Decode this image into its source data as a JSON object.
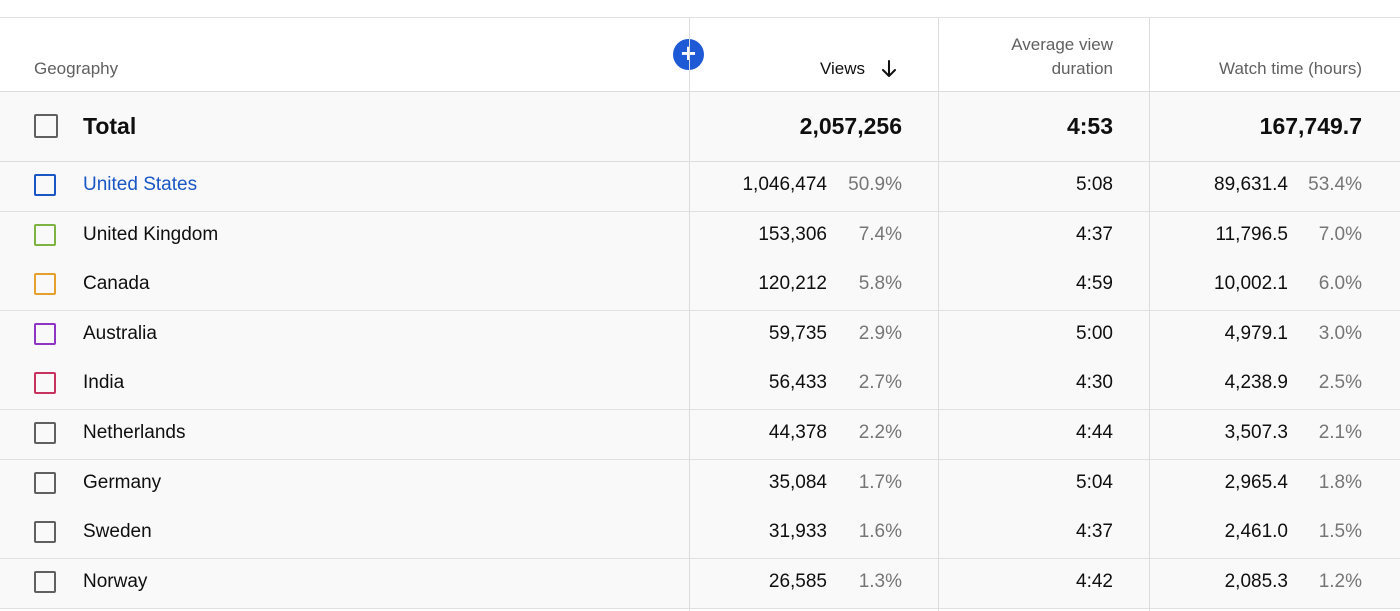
{
  "columns": {
    "geography": "Geography",
    "views": "Views",
    "avg_duration_line1": "Average view",
    "avg_duration_line2": "duration",
    "watch_time": "Watch time (hours)"
  },
  "icons": {
    "add_column": "plus-circle-icon",
    "sort": "arrow-down-icon"
  },
  "add_symbol": "+",
  "total": {
    "label": "Total",
    "views": "2,057,256",
    "avg_duration": "4:53",
    "watch_time": "167,749.7"
  },
  "rows": [
    {
      "name": "United States",
      "views": "1,046,474",
      "views_pct": "50.9%",
      "avg_duration": "5:08",
      "watch_time": "89,631.4",
      "watch_pct": "53.4%",
      "color": "#1a56c4"
    },
    {
      "name": "United Kingdom",
      "views": "153,306",
      "views_pct": "7.4%",
      "avg_duration": "4:37",
      "watch_time": "11,796.5",
      "watch_pct": "7.0%",
      "color": "#7cb342"
    },
    {
      "name": "Canada",
      "views": "120,212",
      "views_pct": "5.8%",
      "avg_duration": "4:59",
      "watch_time": "10,002.1",
      "watch_pct": "6.0%",
      "color": "#e5a030"
    },
    {
      "name": "Australia",
      "views": "59,735",
      "views_pct": "2.9%",
      "avg_duration": "5:00",
      "watch_time": "4,979.1",
      "watch_pct": "3.0%",
      "color": "#8e35c4"
    },
    {
      "name": "India",
      "views": "56,433",
      "views_pct": "2.7%",
      "avg_duration": "4:30",
      "watch_time": "4,238.9",
      "watch_pct": "2.5%",
      "color": "#c8325e"
    },
    {
      "name": "Netherlands",
      "views": "44,378",
      "views_pct": "2.2%",
      "avg_duration": "4:44",
      "watch_time": "3,507.3",
      "watch_pct": "2.1%",
      "color": "#606060"
    },
    {
      "name": "Germany",
      "views": "35,084",
      "views_pct": "1.7%",
      "avg_duration": "5:04",
      "watch_time": "2,965.4",
      "watch_pct": "1.8%",
      "color": "#606060"
    },
    {
      "name": "Sweden",
      "views": "31,933",
      "views_pct": "1.6%",
      "avg_duration": "4:37",
      "watch_time": "2,461.0",
      "watch_pct": "1.5%",
      "color": "#606060"
    },
    {
      "name": "Norway",
      "views": "26,585",
      "views_pct": "1.3%",
      "avg_duration": "4:42",
      "watch_time": "2,085.3",
      "watch_pct": "1.2%",
      "color": "#606060"
    }
  ]
}
